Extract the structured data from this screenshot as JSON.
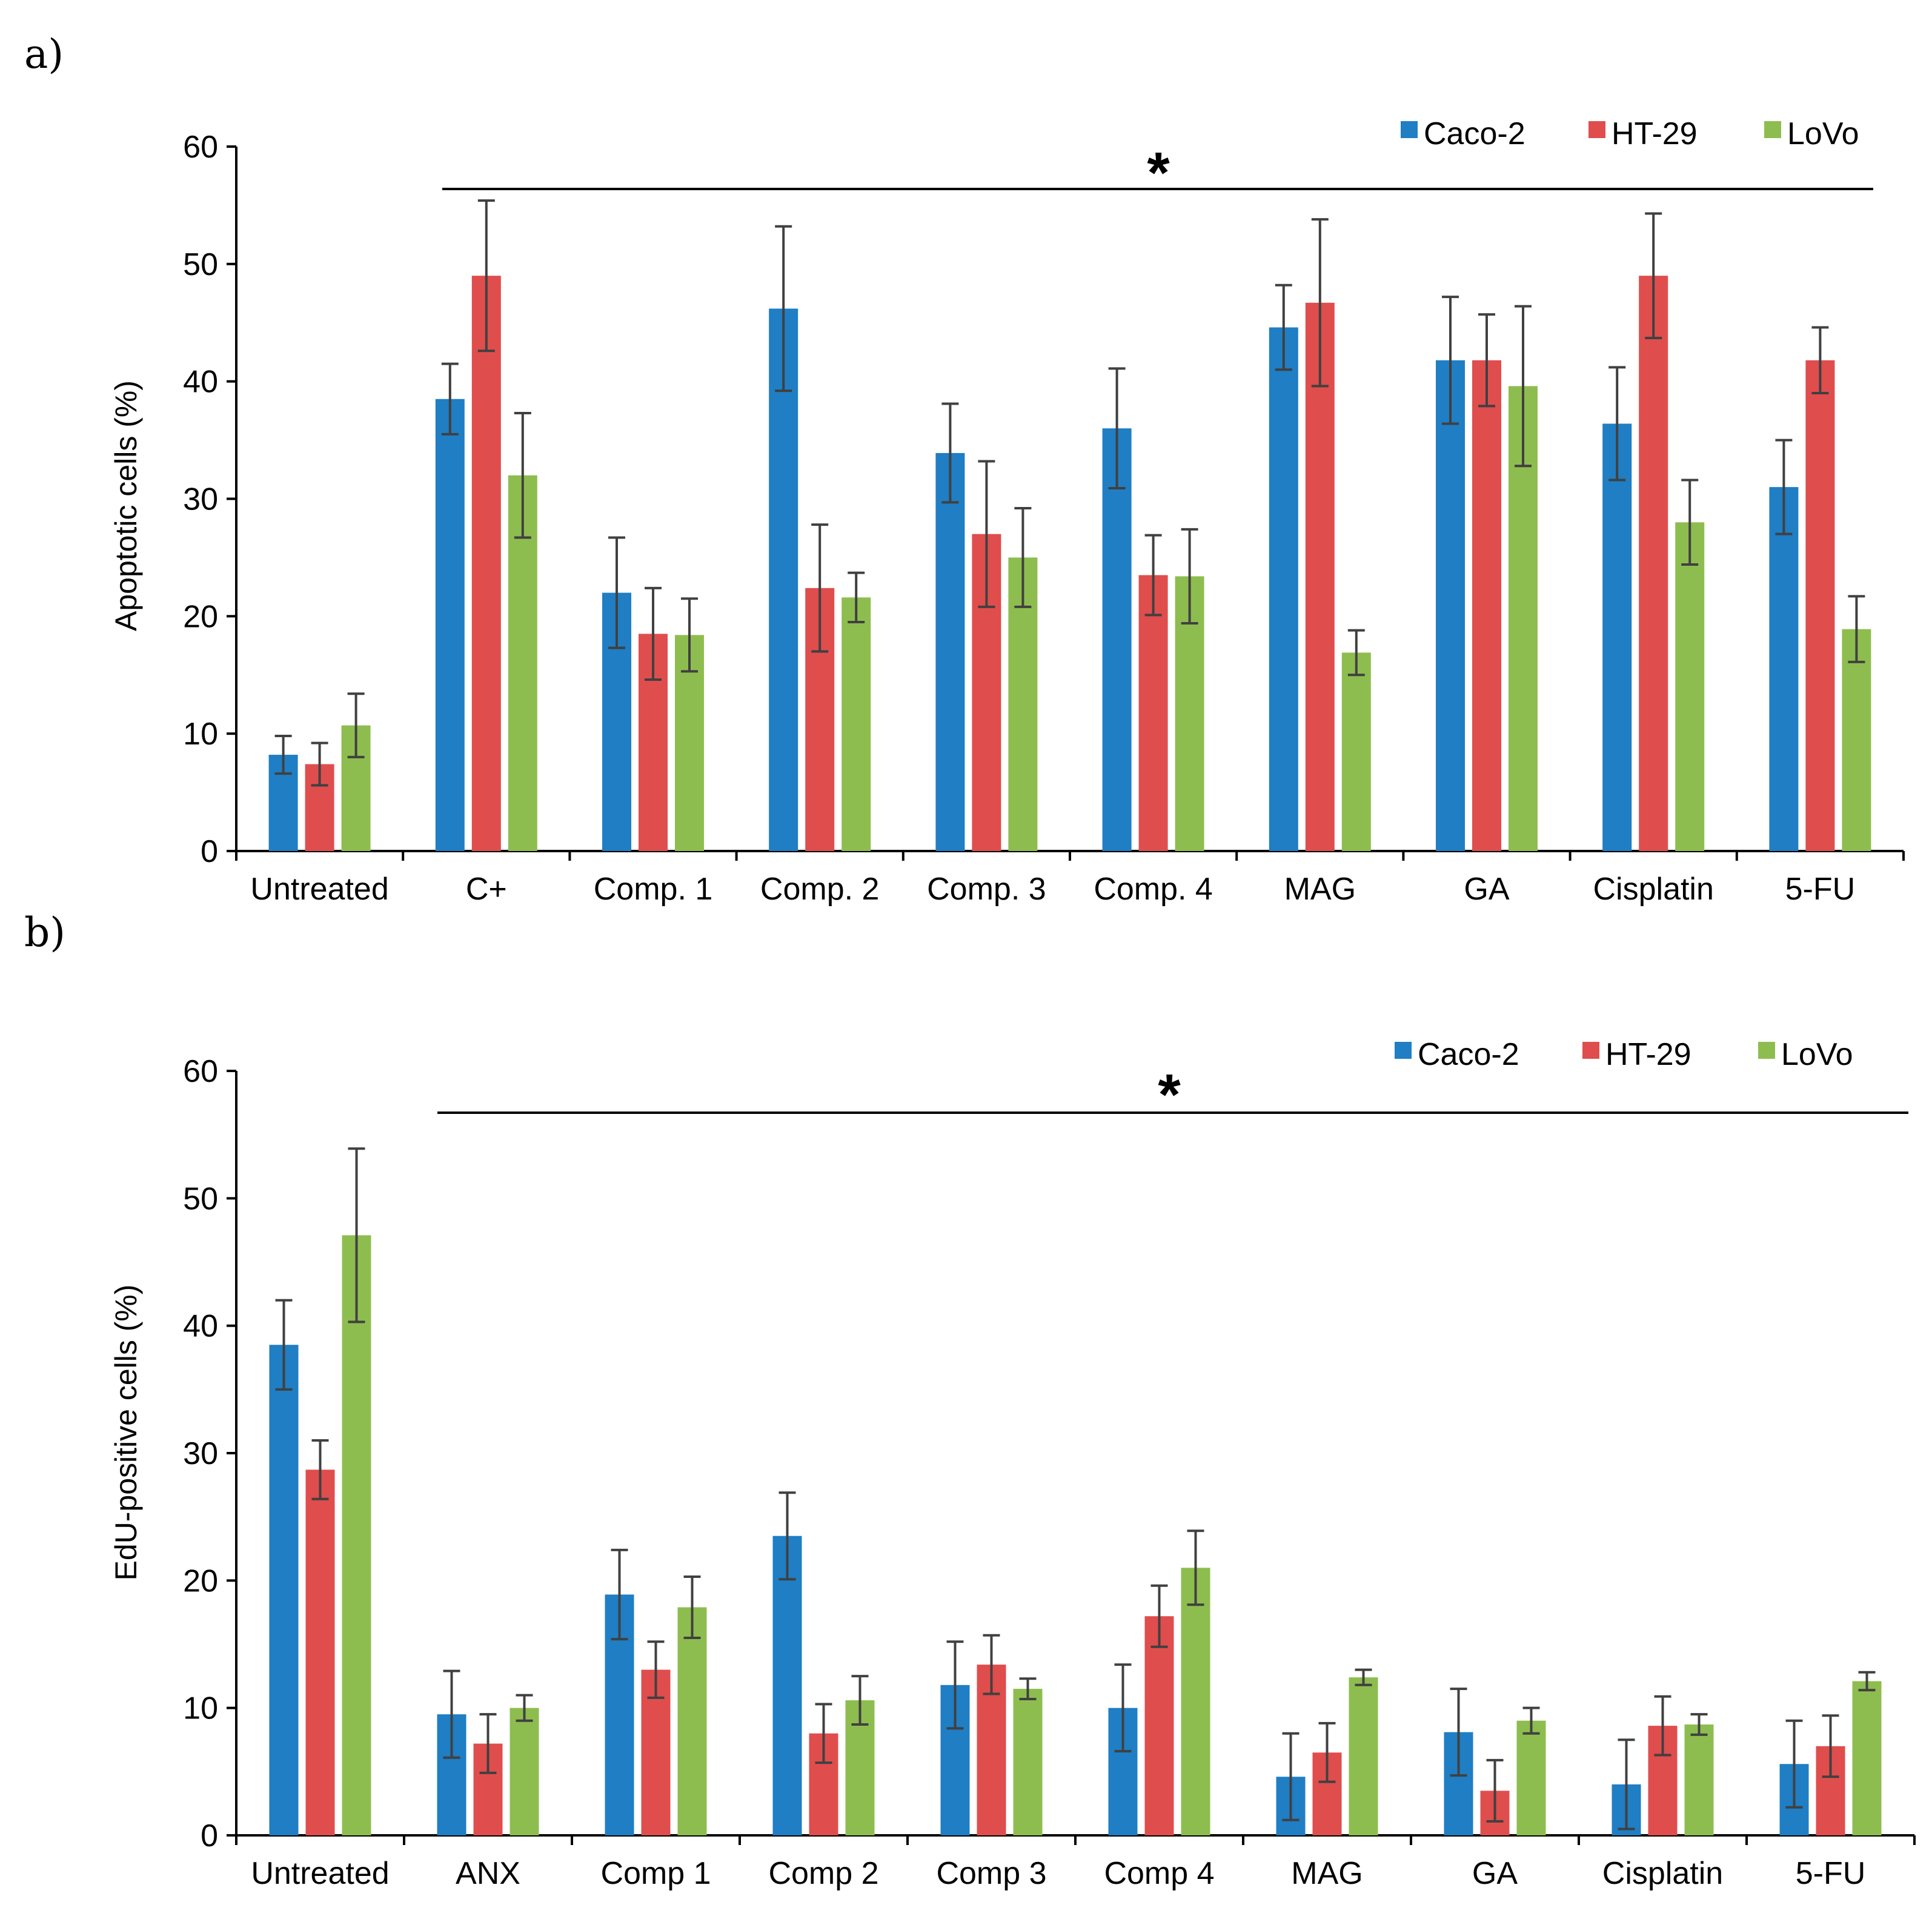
{
  "colors": {
    "Caco-2": "#1f7ec4",
    "HT-29": "#e04d4d",
    "LoVo": "#8ebd4f"
  },
  "chart_data": [
    {
      "panel": "a)",
      "type": "bar",
      "ylabel": "Apoptotic cells (%)",
      "xlabel": "",
      "ylim": [
        0,
        60
      ],
      "yticks": [
        "0",
        "10",
        "20",
        "30",
        "40",
        "50",
        "60"
      ],
      "legend": [
        "Caco-2",
        "HT-29",
        "LoVo"
      ],
      "legend_position": "top-right",
      "significance_mark": "*",
      "categories": [
        "Untreated",
        "C+",
        "Comp. 1",
        "Comp. 2",
        "Comp. 3",
        "Comp. 4",
        "MAG",
        "GA",
        "Cisplatin",
        "5-FU"
      ],
      "series": [
        {
          "name": "Caco-2",
          "values": [
            8.2,
            38.5,
            22.0,
            46.2,
            33.9,
            36.0,
            44.6,
            41.8,
            36.4,
            31.0
          ],
          "errors": [
            1.6,
            3.0,
            4.7,
            7.0,
            4.2,
            5.1,
            3.6,
            5.4,
            4.8,
            4.0
          ]
        },
        {
          "name": "HT-29",
          "values": [
            7.4,
            49.0,
            18.5,
            22.4,
            27.0,
            23.5,
            46.7,
            41.8,
            49.0,
            41.8
          ],
          "errors": [
            1.8,
            6.4,
            3.9,
            5.4,
            6.2,
            3.4,
            7.1,
            3.9,
            5.3,
            2.8
          ]
        },
        {
          "name": "LoVo",
          "values": [
            10.7,
            32.0,
            18.4,
            21.6,
            25.0,
            23.4,
            16.9,
            39.6,
            28.0,
            18.9
          ],
          "errors": [
            2.7,
            5.3,
            3.1,
            2.1,
            4.2,
            4.0,
            1.9,
            6.8,
            3.6,
            2.8
          ]
        }
      ]
    },
    {
      "panel": "b)",
      "type": "bar",
      "ylabel": "EdU-positive cells (%)",
      "xlabel": "",
      "ylim": [
        0,
        60
      ],
      "yticks": [
        "0",
        "10",
        "20",
        "30",
        "40",
        "50",
        "60"
      ],
      "legend": [
        "Caco-2",
        "HT-29",
        "LoVo"
      ],
      "legend_position": "top-right",
      "significance_mark": "*",
      "categories": [
        "Untreated",
        "ANX",
        "Comp 1",
        "Comp 2",
        "Comp 3",
        "Comp 4",
        "MAG",
        "GA",
        "Cisplatin",
        "5-FU"
      ],
      "series": [
        {
          "name": "Caco-2",
          "values": [
            38.5,
            9.5,
            18.9,
            23.5,
            11.8,
            10.0,
            4.6,
            8.1,
            4.0,
            5.6
          ],
          "errors": [
            3.5,
            3.4,
            3.5,
            3.4,
            3.4,
            3.4,
            3.4,
            3.4,
            3.5,
            3.4
          ]
        },
        {
          "name": "HT-29",
          "values": [
            28.7,
            7.2,
            13.0,
            8.0,
            13.4,
            17.2,
            6.5,
            3.5,
            8.6,
            7.0
          ],
          "errors": [
            2.3,
            2.3,
            2.2,
            2.3,
            2.3,
            2.4,
            2.3,
            2.4,
            2.3,
            2.4
          ]
        },
        {
          "name": "LoVo",
          "values": [
            47.1,
            10.0,
            17.9,
            10.6,
            11.5,
            21.0,
            12.4,
            9.0,
            8.7,
            12.1
          ],
          "errors": [
            6.8,
            1.0,
            2.4,
            1.9,
            0.8,
            2.9,
            0.6,
            1.0,
            0.8,
            0.7
          ]
        }
      ]
    }
  ]
}
